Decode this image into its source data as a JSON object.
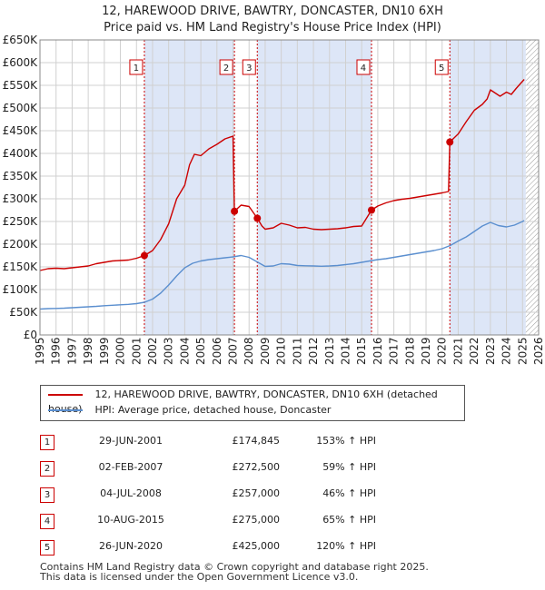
{
  "title_line1": "12, HAREWOOD DRIVE, BAWTRY, DONCASTER, DN10 6XH",
  "title_line2": "Price paid vs. HM Land Registry's House Price Index (HPI)",
  "legend": {
    "red_label": "12, HAREWOOD DRIVE, BAWTRY, DONCASTER, DN10 6XH (detached house)",
    "blue_label": "HPI: Average price, detached house, Doncaster"
  },
  "sales": [
    {
      "num": "1",
      "date": "29-JUN-2001",
      "price": "£174,845",
      "hpi": "153% ↑ HPI"
    },
    {
      "num": "2",
      "date": "02-FEB-2007",
      "price": "£272,500",
      "hpi": "59% ↑ HPI"
    },
    {
      "num": "3",
      "date": "04-JUL-2008",
      "price": "£257,000",
      "hpi": "46% ↑ HPI"
    },
    {
      "num": "4",
      "date": "10-AUG-2015",
      "price": "£275,000",
      "hpi": "65% ↑ HPI"
    },
    {
      "num": "5",
      "date": "26-JUN-2020",
      "price": "£425,000",
      "hpi": "120% ↑ HPI"
    }
  ],
  "footer_line1": "Contains HM Land Registry data © Crown copyright and database right 2025.",
  "footer_line2": "This data is licensed under the Open Government Licence v3.0.",
  "colors": {
    "red": "#cc0000",
    "blue": "#5b8fcf",
    "shade": "#dde6f7",
    "grid": "#d0d0d0",
    "marker_border": "#cc0000"
  },
  "chart_data": {
    "type": "line",
    "title": "",
    "xlabel": "",
    "ylabel": "",
    "xlim": [
      1995,
      2026
    ],
    "ylim": [
      0,
      650000
    ],
    "y_ticks": [
      {
        "value": 0,
        "label": "£0"
      },
      {
        "value": 50000,
        "label": "£50K"
      },
      {
        "value": 100000,
        "label": "£100K"
      },
      {
        "value": 150000,
        "label": "£150K"
      },
      {
        "value": 200000,
        "label": "£200K"
      },
      {
        "value": 250000,
        "label": "£250K"
      },
      {
        "value": 300000,
        "label": "£300K"
      },
      {
        "value": 350000,
        "label": "£350K"
      },
      {
        "value": 400000,
        "label": "£400K"
      },
      {
        "value": 450000,
        "label": "£450K"
      },
      {
        "value": 500000,
        "label": "£500K"
      },
      {
        "value": 550000,
        "label": "£550K"
      },
      {
        "value": 600000,
        "label": "£600K"
      },
      {
        "value": 650000,
        "label": "£650K"
      }
    ],
    "x_ticks": [
      "1995",
      "1996",
      "1997",
      "1998",
      "1999",
      "2000",
      "2001",
      "2002",
      "2003",
      "2004",
      "2005",
      "2006",
      "2007",
      "2008",
      "2009",
      "2010",
      "2011",
      "2012",
      "2013",
      "2014",
      "2015",
      "2016",
      "2017",
      "2018",
      "2019",
      "2020",
      "2021",
      "2022",
      "2023",
      "2024",
      "2025",
      "2026"
    ],
    "grid": true,
    "shaded_spans": [
      [
        2001.49,
        2007.09
      ],
      [
        2008.51,
        2015.61
      ],
      [
        2020.48,
        2025.2
      ]
    ],
    "hatched_span": [
      2025.2,
      2026
    ],
    "sale_markers": [
      {
        "label": "1",
        "x": 2001.49,
        "y": 174845
      },
      {
        "label": "2",
        "x": 2007.09,
        "y": 272500
      },
      {
        "label": "3",
        "x": 2008.51,
        "y": 257000
      },
      {
        "label": "4",
        "x": 2015.61,
        "y": 275000
      },
      {
        "label": "5",
        "x": 2020.48,
        "y": 425000
      }
    ],
    "series": [
      {
        "name": "12, HAREWOOD DRIVE, BAWTRY, DONCASTER, DN10 6XH (detached house)",
        "color": "#cc0000",
        "x": [
          1995.0,
          1995.5,
          1996.0,
          1996.5,
          1997.0,
          1997.5,
          1998.0,
          1998.5,
          1999.0,
          1999.5,
          2000.0,
          2000.5,
          2001.0,
          2001.49,
          2002.0,
          2002.5,
          2003.0,
          2003.5,
          2004.0,
          2004.3,
          2004.6,
          2005.0,
          2005.5,
          2006.0,
          2006.5,
          2007.0,
          2007.09,
          2007.5,
          2008.0,
          2008.51,
          2008.8,
          2009.0,
          2009.5,
          2010.0,
          2010.5,
          2011.0,
          2011.5,
          2012.0,
          2012.5,
          2013.0,
          2013.5,
          2014.0,
          2014.5,
          2015.0,
          2015.61,
          2016.0,
          2016.5,
          2017.0,
          2017.5,
          2018.0,
          2018.5,
          2019.0,
          2019.5,
          2020.0,
          2020.4,
          2020.48,
          2021.0,
          2021.5,
          2022.0,
          2022.5,
          2022.8,
          2023.0,
          2023.3,
          2023.6,
          2024.0,
          2024.3,
          2024.6,
          2024.9,
          2025.1
        ],
        "y": [
          142000,
          146000,
          147000,
          146000,
          148000,
          150000,
          152000,
          157000,
          160000,
          163000,
          164000,
          165000,
          169000,
          174845,
          186000,
          210000,
          245000,
          300000,
          330000,
          375000,
          398000,
          395000,
          410000,
          420000,
          432000,
          438000,
          272500,
          286000,
          283000,
          257000,
          240000,
          233000,
          236000,
          246000,
          242000,
          236000,
          237000,
          233000,
          232000,
          233000,
          234000,
          236000,
          239000,
          240000,
          275000,
          284000,
          291000,
          296000,
          299000,
          301000,
          304000,
          307000,
          310000,
          313000,
          316000,
          425000,
          443000,
          470000,
          495000,
          508000,
          520000,
          540000,
          533000,
          526000,
          535000,
          530000,
          543000,
          555000,
          563000
        ]
      },
      {
        "name": "HPI: Average price, detached house, Doncaster",
        "color": "#5b8fcf",
        "x": [
          1995.0,
          1995.5,
          1996.0,
          1996.5,
          1997.0,
          1997.5,
          1998.0,
          1998.5,
          1999.0,
          1999.5,
          2000.0,
          2000.5,
          2001.0,
          2001.5,
          2002.0,
          2002.5,
          2003.0,
          2003.5,
          2004.0,
          2004.5,
          2005.0,
          2005.5,
          2006.0,
          2006.5,
          2007.0,
          2007.5,
          2008.0,
          2008.5,
          2009.0,
          2009.5,
          2010.0,
          2010.5,
          2011.0,
          2011.5,
          2012.0,
          2012.5,
          2013.0,
          2013.5,
          2014.0,
          2014.5,
          2015.0,
          2015.5,
          2016.0,
          2016.5,
          2017.0,
          2017.5,
          2018.0,
          2018.5,
          2019.0,
          2019.5,
          2020.0,
          2020.5,
          2021.0,
          2021.5,
          2022.0,
          2022.5,
          2023.0,
          2023.5,
          2024.0,
          2024.5,
          2025.0,
          2025.1
        ],
        "y": [
          57000,
          58000,
          58500,
          59000,
          60000,
          61000,
          62000,
          63000,
          64500,
          65500,
          66500,
          67500,
          69000,
          72000,
          79000,
          92000,
          110000,
          130000,
          148000,
          158000,
          163000,
          166000,
          168000,
          170000,
          172000,
          175000,
          171000,
          161000,
          151000,
          152000,
          157000,
          156000,
          153000,
          152500,
          152000,
          151500,
          152000,
          153000,
          155000,
          157000,
          160000,
          163000,
          166000,
          168000,
          171000,
          174000,
          177000,
          180000,
          183000,
          186000,
          190000,
          197000,
          207000,
          216000,
          228000,
          240000,
          248000,
          241000,
          238000,
          242000,
          250000,
          252000
        ]
      }
    ]
  }
}
